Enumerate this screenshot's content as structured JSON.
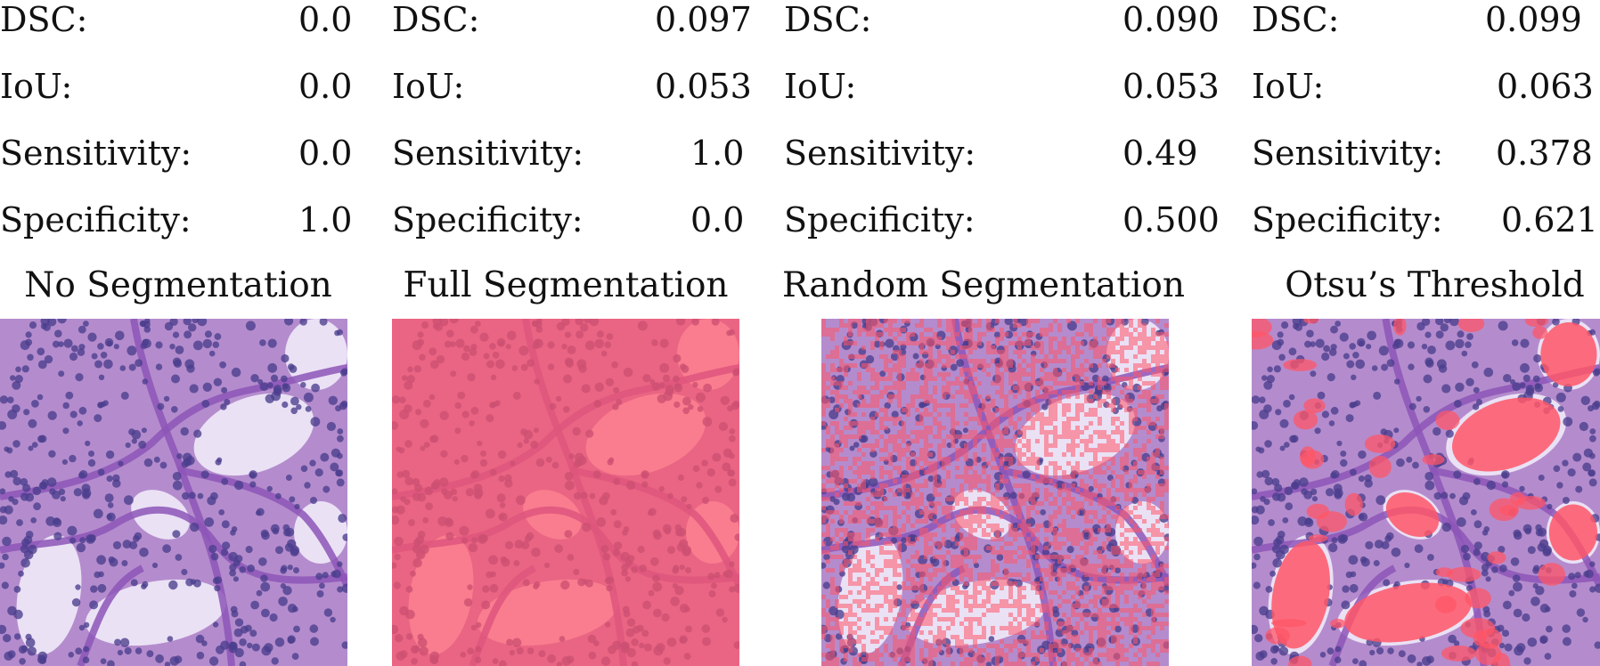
{
  "panels": [
    {
      "title": "No Segmentation",
      "metrics": [
        {
          "label": "DSC:",
          "value": "0.0"
        },
        {
          "label": "IoU:",
          "value": "0.0"
        },
        {
          "label": "Sensitivity:",
          "value": "0.0"
        },
        {
          "label": "Specificity:",
          "value": "1.0"
        }
      ],
      "overlay": "none"
    },
    {
      "title": "Full Segmentation",
      "metrics": [
        {
          "label": "DSC:",
          "value": "0.097"
        },
        {
          "label": "IoU:",
          "value": "0.053"
        },
        {
          "label": "Sensitivity:",
          "value": "1.0"
        },
        {
          "label": "Specificity:",
          "value": "0.0"
        }
      ],
      "overlay": "full"
    },
    {
      "title": "Random Segmentation",
      "metrics": [
        {
          "label": "DSC:",
          "value": "0.090"
        },
        {
          "label": "IoU:",
          "value": "0.053"
        },
        {
          "label": "Sensitivity:",
          "value": "0.49"
        },
        {
          "label": "Specificity:",
          "value": "0.500"
        }
      ],
      "overlay": "random"
    },
    {
      "title": "Otsu’s Threshold",
      "metrics": [
        {
          "label": "DSC:",
          "value": "0.099"
        },
        {
          "label": "IoU:",
          "value": "0.063"
        },
        {
          "label": "Sensitivity:",
          "value": "0.378"
        },
        {
          "label": "Specificity:",
          "value": "0.621"
        }
      ],
      "overlay": "otsu"
    }
  ],
  "colors": {
    "tissue_background": "#b48ccd",
    "stroma": "#8d55b7",
    "nuclei": "#4a3d8d",
    "lumen": "#efe8f8",
    "segmentation": "#ff5667"
  }
}
